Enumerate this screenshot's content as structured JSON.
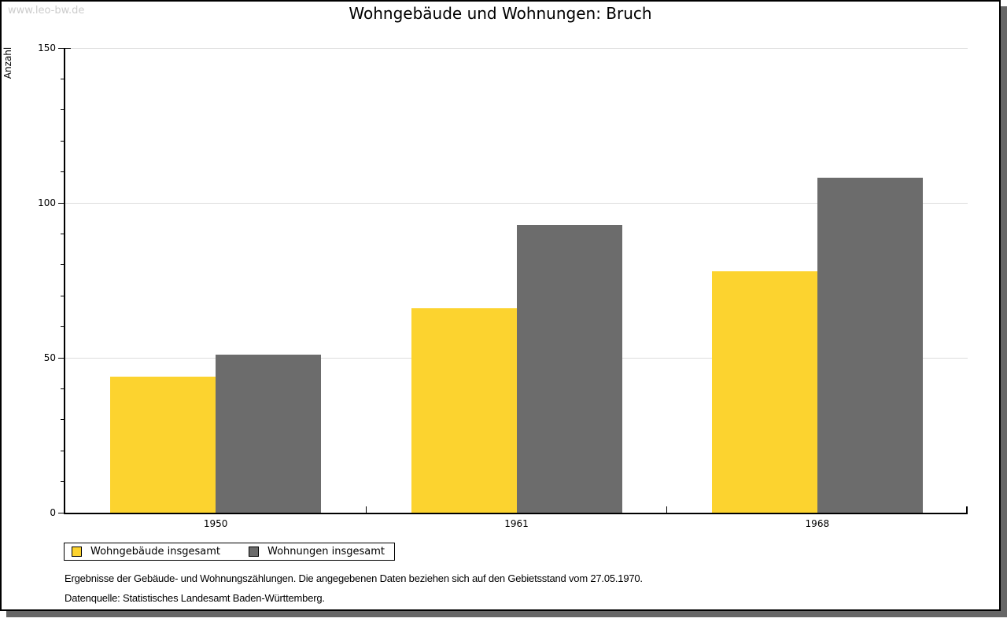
{
  "page": {
    "watermark": "www.leo-bw.de",
    "title": "Wohngebäude und Wohnungen: Bruch"
  },
  "chart_data": {
    "type": "bar",
    "title": "Wohngebäude und Wohnungen: Bruch",
    "xlabel": "",
    "ylabel": "Anzahl",
    "categories": [
      "1950",
      "1961",
      "1968"
    ],
    "series": [
      {
        "name": "Wohngebäude insgesamt",
        "color": "#fcd32f",
        "values": [
          44,
          66,
          78
        ]
      },
      {
        "name": "Wohnungen insgesamt",
        "color": "#6c6c6c",
        "values": [
          51,
          93,
          108
        ]
      }
    ],
    "ylim": [
      0,
      150
    ],
    "yticks": [
      0,
      50,
      100,
      150
    ],
    "minor_tick_step": 10,
    "grid": true,
    "legend_position": "bottom-left"
  },
  "footnotes": {
    "line1": "Ergebnisse der Gebäude- und Wohnungszählungen. Die angegebenen Daten beziehen sich auf den Gebietsstand vom 27.05.1970.",
    "line2": "Datenquelle: Statistisches Landesamt Baden-Württemberg."
  },
  "colors": {
    "bar_yellow": "#fcd32f",
    "bar_gray": "#6c6c6c",
    "gridline": "#dddddd",
    "axis": "#000000",
    "watermark": "#cccccc",
    "shadow": "#666666"
  }
}
